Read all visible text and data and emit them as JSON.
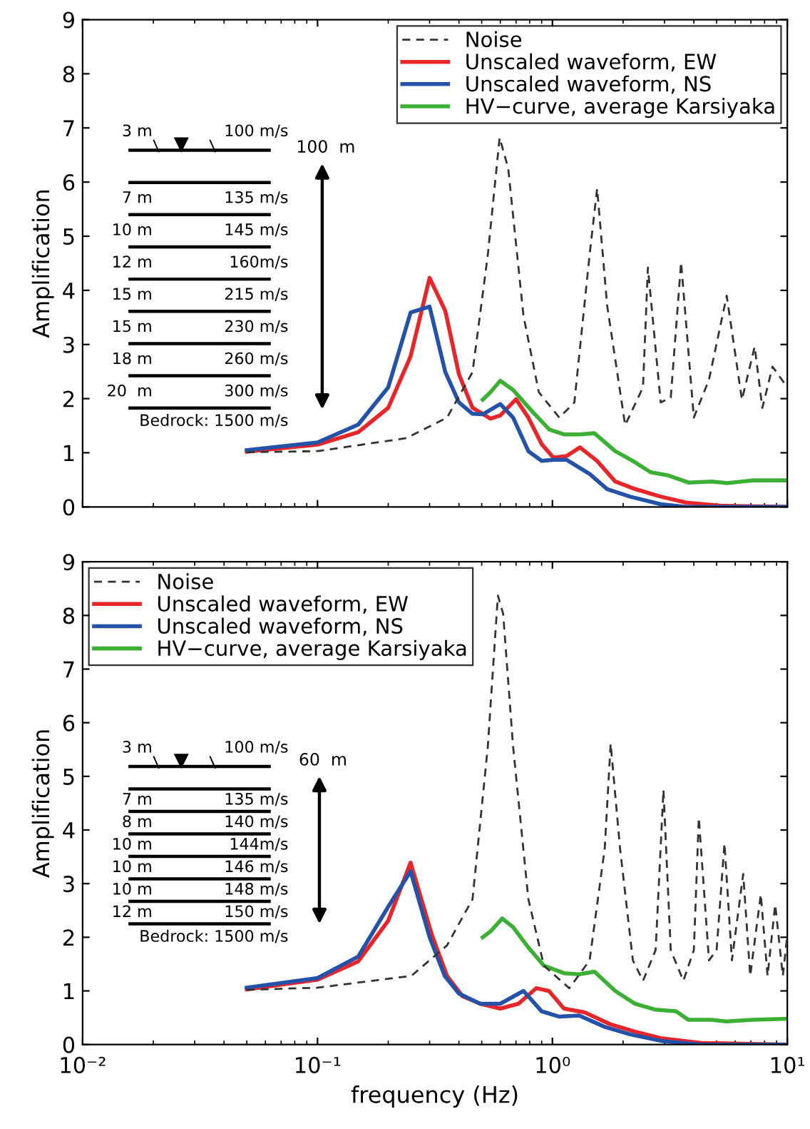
{
  "chart_data": [
    {
      "type": "line",
      "ylabel": "Amplification",
      "log": "x",
      "xlim": [
        0.01,
        10
      ],
      "ylim": [
        0,
        9
      ],
      "tick_labels": "y",
      "legend": "top right",
      "xticks": [
        {
          "value": 0.01,
          "label": null
        },
        {
          "value": 0.1,
          "label": null
        },
        {
          "value": 1,
          "label": null
        },
        {
          "value": 10,
          "label": null
        }
      ],
      "yticks": [
        0,
        1,
        2,
        3,
        4,
        5,
        6,
        7,
        8,
        9
      ],
      "annotations": [
        "3 m",
        "100 m/s",
        "7 m",
        "135 m/s",
        "10 m",
        "145 m/s",
        "12 m",
        "160m/s",
        "15 m",
        "215 m/s",
        "15 m",
        "230 m/s",
        "18 m",
        "260 m/s",
        "20  m",
        "300 m/s",
        "Bedrock: 1500 m/s",
        "100  m"
      ],
      "series": [
        {
          "name": "Noise",
          "color": "#333333",
          "line_style": "dashed",
          "x": [
            0.05,
            0.1,
            0.239,
            0.356,
            0.457,
            0.531,
            0.596,
            0.648,
            0.753,
            0.875,
            1.07,
            1.24,
            1.44,
            1.55,
            1.71,
            2.04,
            2.43,
            2.55,
            2.89,
            3.19,
            3.53,
            4.0,
            4.64,
            5.52,
            6.41,
            7.26,
            7.83,
            8.65,
            10
          ],
          "values": [
            1.01,
            1.03,
            1.27,
            1.65,
            2.49,
            4.66,
            6.82,
            6.26,
            3.53,
            2.12,
            1.65,
            1.93,
            4.66,
            5.88,
            3.72,
            1.51,
            2.21,
            4.42,
            1.93,
            2.02,
            4.52,
            1.65,
            2.35,
            3.9,
            1.98,
            2.96,
            1.83,
            2.59,
            2.21
          ]
        },
        {
          "name": "Unscaled waveform, EW",
          "color": "#e8262a",
          "x": [
            0.05,
            0.1,
            0.149,
            0.2,
            0.249,
            0.3,
            0.35,
            0.4,
            0.457,
            0.545,
            0.6,
            0.7,
            0.79,
            0.9,
            1.01,
            1.15,
            1.31,
            1.55,
            1.85,
            2.25,
            2.89,
            3.71,
            5.26,
            10
          ],
          "values": [
            1.02,
            1.15,
            1.38,
            1.83,
            2.78,
            4.23,
            3.62,
            2.45,
            1.83,
            1.63,
            1.69,
            1.99,
            1.65,
            1.16,
            0.91,
            0.94,
            1.1,
            0.85,
            0.47,
            0.33,
            0.19,
            0.08,
            0.02,
            0
          ]
        },
        {
          "name": "Unscaled waveform, NS",
          "color": "#2352a8",
          "x": [
            0.05,
            0.1,
            0.149,
            0.2,
            0.249,
            0.3,
            0.35,
            0.4,
            0.457,
            0.505,
            0.6,
            0.68,
            0.79,
            0.9,
            1.01,
            1.15,
            1.44,
            1.71,
            2.14,
            2.89,
            3.71,
            10
          ],
          "values": [
            1.05,
            1.19,
            1.52,
            2.21,
            3.59,
            3.7,
            2.49,
            1.93,
            1.72,
            1.71,
            1.9,
            1.65,
            1.03,
            0.85,
            0.87,
            0.87,
            0.61,
            0.33,
            0.19,
            0.05,
            0,
            0
          ]
        },
        {
          "name": "HV−curve, average Karsiyaka",
          "color": "#3cb034",
          "x": [
            0.505,
            0.545,
            0.6,
            0.68,
            0.83,
            0.97,
            1.12,
            1.3,
            1.51,
            1.85,
            2.2,
            2.62,
            3.12,
            3.8,
            4.76,
            5.52,
            7.09,
            10
          ],
          "values": [
            1.98,
            2.12,
            2.33,
            2.16,
            1.74,
            1.43,
            1.34,
            1.34,
            1.36,
            1.03,
            0.85,
            0.64,
            0.58,
            0.45,
            0.47,
            0.44,
            0.49,
            0.49
          ]
        }
      ]
    },
    {
      "type": "line",
      "xlabel": "frequency (Hz)",
      "ylabel": "Amplification",
      "log": "x",
      "xlim": [
        0.01,
        10
      ],
      "ylim": [
        0,
        9
      ],
      "legend": "top left",
      "xticks": [
        {
          "value": 0.01,
          "label": "10⁻²"
        },
        {
          "value": 0.1,
          "label": "10⁻¹"
        },
        {
          "value": 1,
          "label": "10⁰"
        },
        {
          "value": 10,
          "label": "10¹"
        }
      ],
      "yticks": [
        0,
        1,
        2,
        3,
        4,
        5,
        6,
        7,
        8,
        9
      ],
      "annotations": [
        "3 m",
        "100 m/s",
        "7 m",
        "135 m/s",
        "8 m",
        "140 m/s",
        "10 m",
        "144m/s",
        "10 m",
        "146 m/s",
        "10 m",
        "148 m/s",
        "12 m",
        "150 m/s",
        "Bedrock: 1500 m/s",
        "60  m"
      ],
      "series": [
        {
          "name": "Noise",
          "color": "#333333",
          "line_style": "dashed",
          "x": [
            0.05,
            0.1,
            0.251,
            0.356,
            0.457,
            0.531,
            0.586,
            0.617,
            0.68,
            0.79,
            0.92,
            1.18,
            1.44,
            1.67,
            1.77,
            1.94,
            2.2,
            2.43,
            2.75,
            2.97,
            3.19,
            3.61,
            4.0,
            4.2,
            4.64,
            5.0,
            5.4,
            5.81,
            6.49,
            6.95,
            7.71,
            8.24,
            8.88,
            9.57,
            10
          ],
          "values": [
            1.02,
            1.06,
            1.28,
            1.85,
            2.71,
            5.56,
            8.37,
            8.03,
            5.56,
            2.71,
            1.47,
            1.05,
            1.57,
            3.66,
            5.61,
            3.66,
            1.57,
            1.19,
            1.76,
            4.75,
            1.76,
            1.19,
            1.76,
            4.23,
            1.57,
            1.76,
            3.75,
            1.57,
            3.18,
            1.28,
            2.8,
            1.28,
            2.61,
            1.28,
            2.04
          ]
        },
        {
          "name": "Unscaled waveform, EW",
          "color": "#e8262a",
          "x": [
            0.05,
            0.1,
            0.149,
            0.2,
            0.249,
            0.307,
            0.356,
            0.414,
            0.493,
            0.6,
            0.716,
            0.853,
            0.966,
            1.12,
            1.37,
            1.76,
            2.25,
            2.89,
            4.31,
            10
          ],
          "values": [
            1.03,
            1.21,
            1.55,
            2.31,
            3.39,
            2.04,
            1.28,
            0.9,
            0.76,
            0.67,
            0.76,
            1.05,
            1.0,
            0.67,
            0.6,
            0.38,
            0.24,
            0.12,
            0.03,
            0
          ]
        },
        {
          "name": "Unscaled waveform, NS",
          "color": "#2352a8",
          "x": [
            0.05,
            0.1,
            0.149,
            0.2,
            0.249,
            0.3,
            0.348,
            0.4,
            0.493,
            0.6,
            0.753,
            0.9,
            1.07,
            1.3,
            1.67,
            2.14,
            2.89,
            4.31,
            10
          ],
          "values": [
            1.06,
            1.24,
            1.64,
            2.57,
            3.23,
            2.0,
            1.28,
            0.95,
            0.76,
            0.76,
            1.0,
            0.62,
            0.52,
            0.54,
            0.33,
            0.19,
            0.07,
            0,
            0
          ]
        },
        {
          "name": "HV−curve, average Karsiyaka",
          "color": "#3cb034",
          "x": [
            0.505,
            0.545,
            0.611,
            0.68,
            0.79,
            0.92,
            1.12,
            1.3,
            1.51,
            1.85,
            2.25,
            2.75,
            3.36,
            3.8,
            4.76,
            5.52,
            7.09,
            10
          ],
          "values": [
            2.0,
            2.11,
            2.35,
            2.19,
            1.81,
            1.47,
            1.33,
            1.31,
            1.36,
            1.0,
            0.76,
            0.65,
            0.62,
            0.46,
            0.46,
            0.43,
            0.46,
            0.48
          ]
        }
      ]
    }
  ]
}
